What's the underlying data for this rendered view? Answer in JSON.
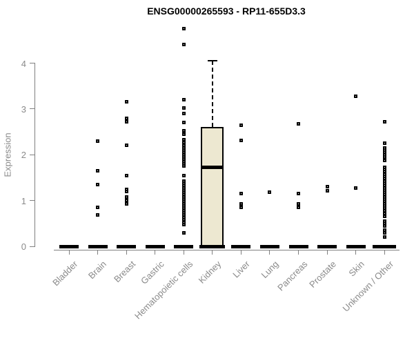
{
  "chart_data": {
    "type": "boxplot",
    "title": "ENSG00000265593 - RP11-655D3.3",
    "ylabel": "Expression",
    "ylim": [
      0,
      4.8
    ],
    "yticks": [
      0,
      1,
      2,
      3,
      4
    ],
    "grid": false,
    "legend": "none",
    "colors": {
      "box_fill": "#EDE8D1",
      "box_border": "#000000",
      "median": "#000000",
      "outlier": "#000000",
      "axis": "#7f7f7f",
      "axis_text": "#8a8a8a",
      "title_text": "#000000"
    },
    "categories": [
      "Bladder",
      "Brain",
      "Breast",
      "Gastric",
      "Hematopoietic cells",
      "Kidney",
      "Liver",
      "Lung",
      "Pancreas",
      "Prostate",
      "Skin",
      "Unknown / Other"
    ],
    "series": [
      {
        "category": "Bladder",
        "q1": 0,
        "median": 0,
        "q3": 0,
        "whisker_low": 0,
        "whisker_high": 0,
        "outliers": []
      },
      {
        "category": "Brain",
        "q1": 0,
        "median": 0,
        "q3": 0,
        "whisker_low": 0,
        "whisker_high": 0,
        "outliers": [
          2.3,
          1.65,
          1.35,
          0.85,
          0.68
        ]
      },
      {
        "category": "Breast",
        "q1": 0,
        "median": 0,
        "q3": 0,
        "whisker_low": 0,
        "whisker_high": 0,
        "outliers": [
          3.15,
          2.8,
          2.72,
          2.2,
          1.55,
          1.25,
          1.2,
          1.08,
          1.0,
          0.92
        ]
      },
      {
        "category": "Gastric",
        "q1": 0,
        "median": 0,
        "q3": 0,
        "whisker_low": 0,
        "whisker_high": 0,
        "outliers": []
      },
      {
        "category": "Hematopoietic cells",
        "q1": 0,
        "median": 0,
        "q3": 0,
        "whisker_low": 0,
        "whisker_high": 0,
        "outliers": [
          4.75,
          4.4,
          3.2,
          3.02,
          2.9,
          2.7,
          2.52,
          2.45,
          2.33,
          2.27,
          2.2,
          2.15,
          2.1,
          2.05,
          2.0,
          1.95,
          1.9,
          1.85,
          1.8,
          1.75,
          1.55,
          1.43,
          1.38,
          1.33,
          1.28,
          1.23,
          1.18,
          1.13,
          1.08,
          1.03,
          0.98,
          0.93,
          0.88,
          0.83,
          0.78,
          0.73,
          0.68,
          0.63,
          0.58,
          0.52,
          0.48,
          0.3
        ]
      },
      {
        "category": "Kidney",
        "q1": 0,
        "median": 1.73,
        "q3": 2.6,
        "whisker_low": 0,
        "whisker_high": 4.05,
        "outliers": []
      },
      {
        "category": "Liver",
        "q1": 0,
        "median": 0,
        "q3": 0,
        "whisker_low": 0,
        "whisker_high": 0,
        "outliers": [
          2.65,
          2.32,
          1.16,
          0.93,
          0.85
        ]
      },
      {
        "category": "Lung",
        "q1": 0,
        "median": 0,
        "q3": 0,
        "whisker_low": 0,
        "whisker_high": 0,
        "outliers": [
          1.19
        ]
      },
      {
        "category": "Pancreas",
        "q1": 0,
        "median": 0,
        "q3": 0,
        "whisker_low": 0,
        "whisker_high": 0,
        "outliers": [
          2.68,
          1.16,
          0.92,
          0.85
        ]
      },
      {
        "category": "Prostate",
        "q1": 0,
        "median": 0,
        "q3": 0,
        "whisker_low": 0,
        "whisker_high": 0,
        "outliers": [
          1.3,
          1.22
        ]
      },
      {
        "category": "Skin",
        "q1": 0,
        "median": 0,
        "q3": 0,
        "whisker_low": 0,
        "whisker_high": 0,
        "outliers": [
          3.27,
          1.28
        ]
      },
      {
        "category": "Unknown / Other",
        "q1": 0,
        "median": 0,
        "q3": 0,
        "whisker_low": 0,
        "whisker_high": 0,
        "outliers": [
          2.72,
          2.25,
          2.15,
          2.1,
          2.05,
          2.0,
          1.95,
          1.88,
          1.73,
          1.68,
          1.63,
          1.58,
          1.53,
          1.48,
          1.43,
          1.38,
          1.33,
          1.28,
          1.23,
          1.18,
          1.13,
          1.08,
          1.03,
          0.98,
          0.93,
          0.88,
          0.83,
          0.78,
          0.72,
          0.65,
          0.55,
          0.5,
          0.45,
          0.35,
          0.3,
          0.2
        ]
      }
    ]
  }
}
